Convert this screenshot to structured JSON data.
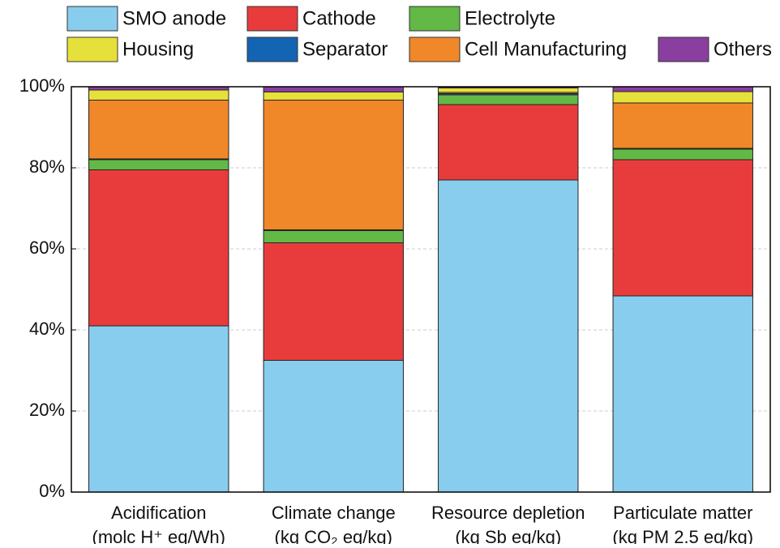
{
  "chart_data": {
    "type": "stacked_bar",
    "categories": [
      [
        "Acidification",
        "(molc H⁺ eq/Wh)"
      ],
      [
        "Climate change",
        "(kg CO₂ eq/kg)"
      ],
      [
        "Resource depletion",
        "(kg Sb eq/kg)"
      ],
      [
        "Particulate matter",
        "(kg PM 2.5 eq/kg)"
      ]
    ],
    "series": [
      {
        "name": "SMO anode",
        "color": "#88cdee",
        "values": [
          41,
          32.5,
          77,
          48.4
        ]
      },
      {
        "name": "Cathode",
        "color": "#e83c3c",
        "values": [
          38.5,
          29,
          18.6,
          33.6
        ]
      },
      {
        "name": "Electrolyte",
        "color": "#62b946",
        "values": [
          2.5,
          3,
          2.4,
          2.6
        ]
      },
      {
        "name": "Separator",
        "color": "#1464b4",
        "values": [
          0.2,
          0.2,
          0.3,
          0.2
        ]
      },
      {
        "name": "Cell Manufacturing",
        "color": "#f0882a",
        "values": [
          14.5,
          32,
          0.3,
          11.2
        ]
      },
      {
        "name": "Housing",
        "color": "#e6e03a",
        "values": [
          2.5,
          2,
          1.1,
          2.8
        ]
      },
      {
        "name": "Others",
        "color": "#8a3fa0",
        "values": [
          0.8,
          1.3,
          0.3,
          1.2
        ]
      }
    ],
    "ylim": [
      0,
      100
    ],
    "yticks": [
      {
        "value": 0,
        "label": "0%"
      },
      {
        "value": 20,
        "label": "20%"
      },
      {
        "value": 40,
        "label": "40%"
      },
      {
        "value": 60,
        "label": "60%"
      },
      {
        "value": 80,
        "label": "80%"
      },
      {
        "value": 100,
        "label": "100%"
      }
    ],
    "grid": true
  }
}
